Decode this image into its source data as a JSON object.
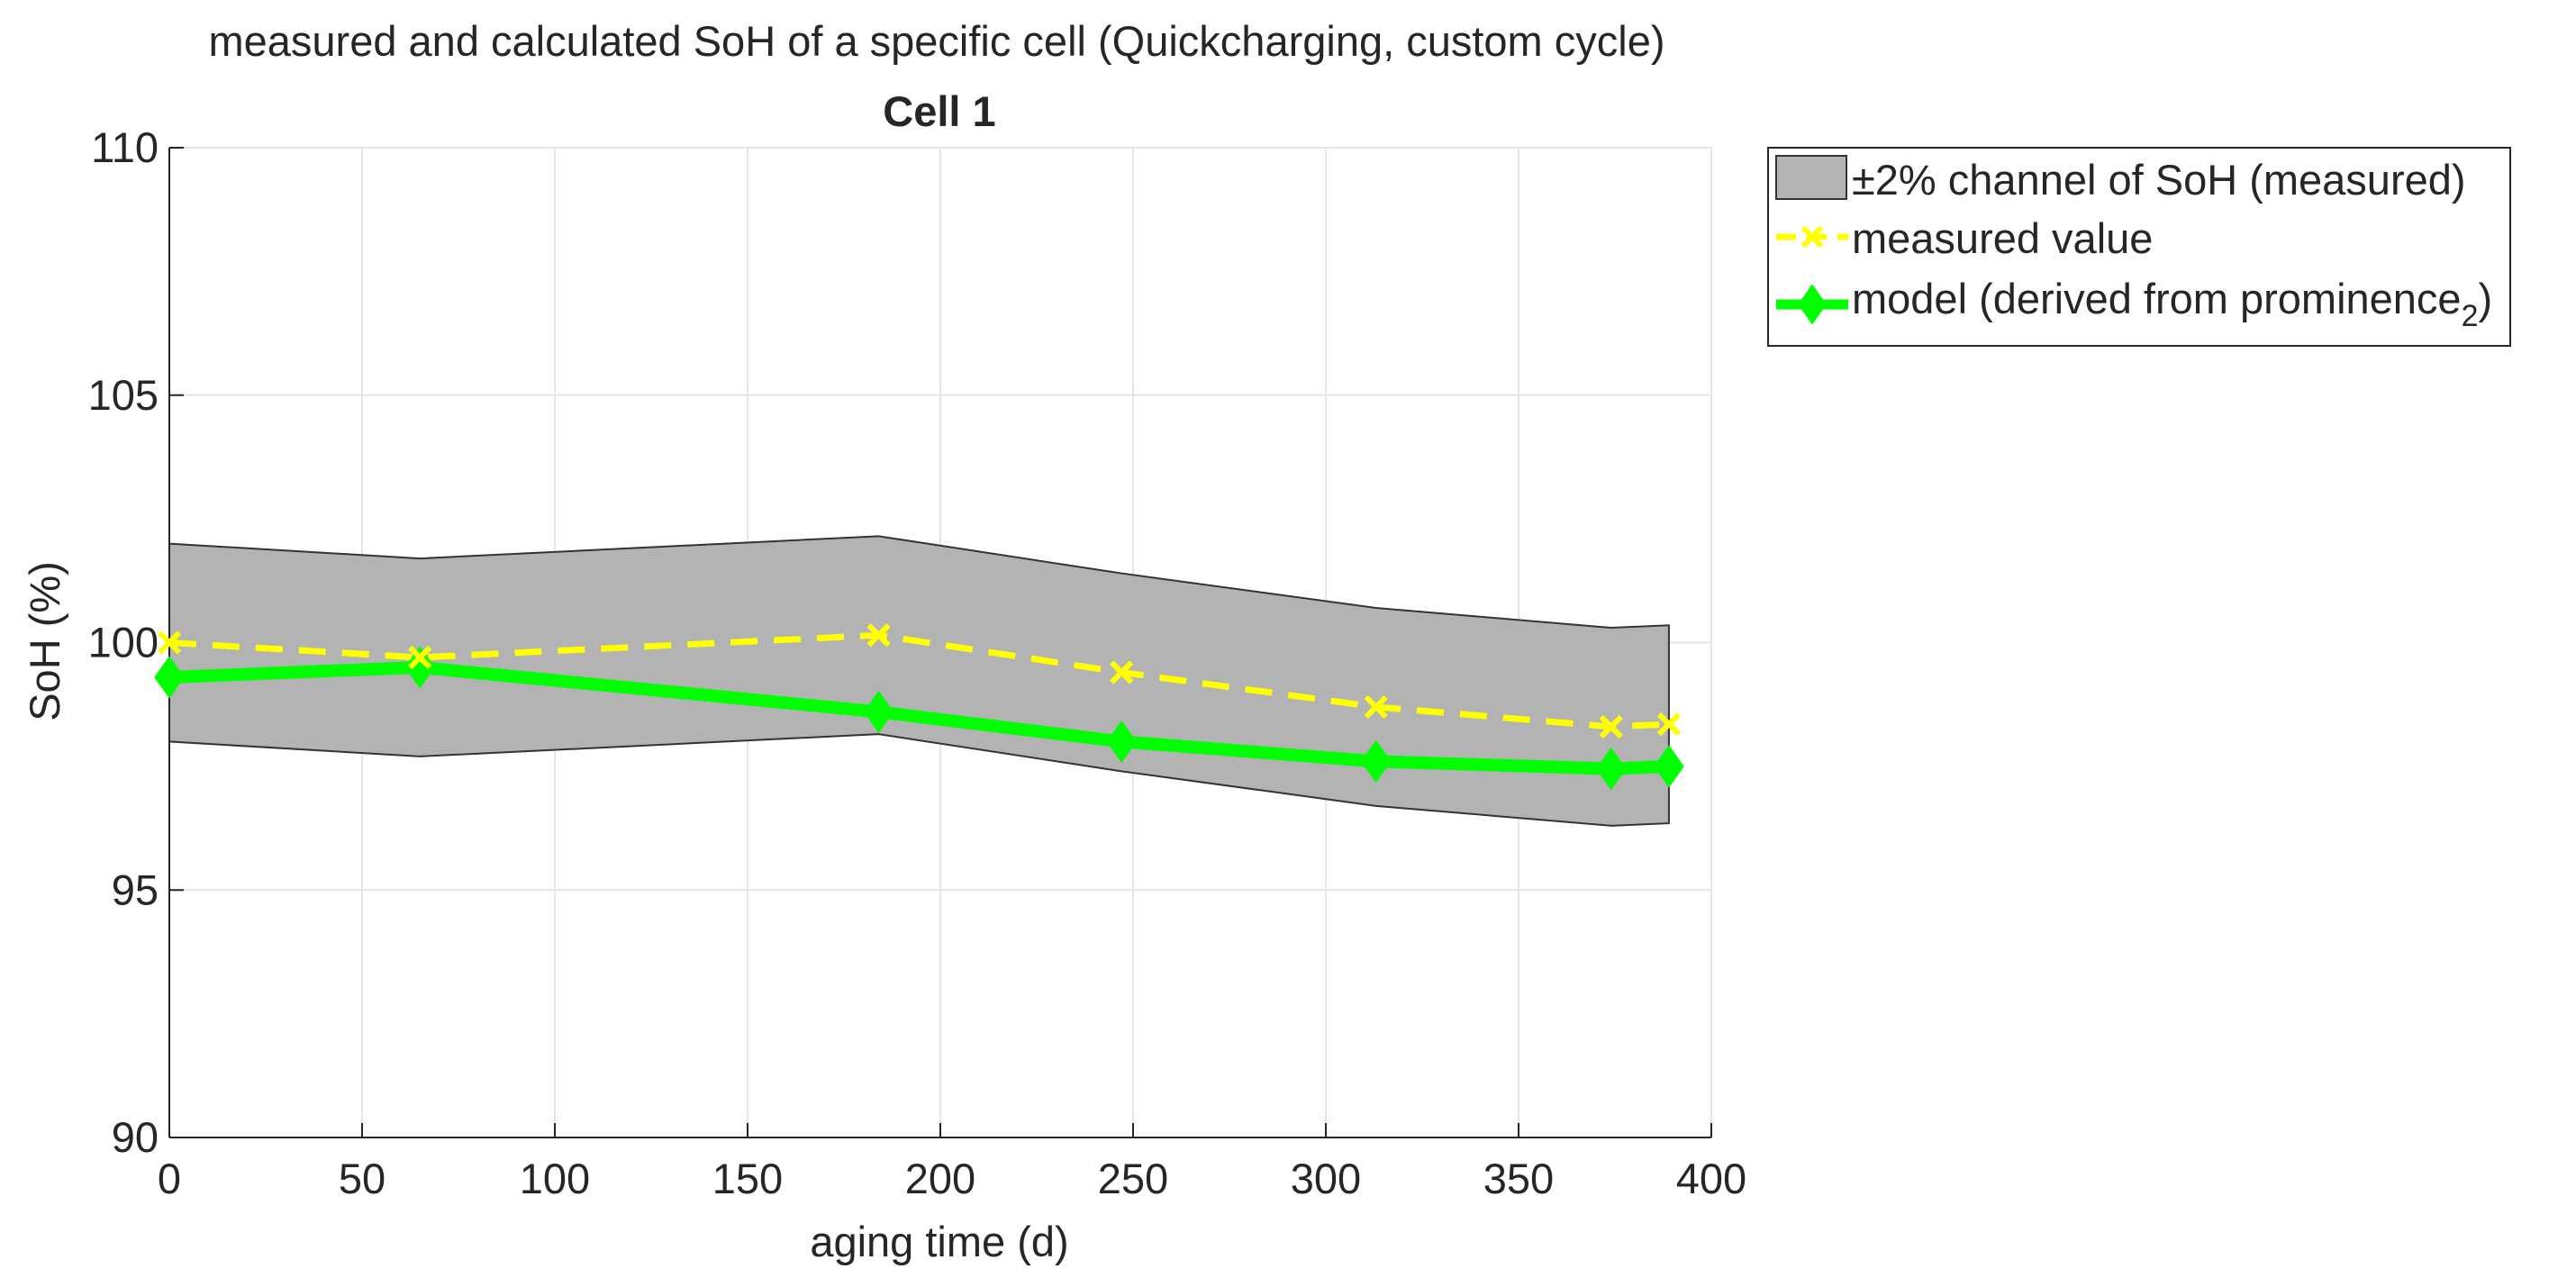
{
  "chart_data": {
    "type": "line",
    "suptitle": "measured and calculated SoH of a specific cell (Quickcharging, custom cycle)",
    "title": "Cell 1",
    "xlabel": "aging time (d)",
    "ylabel": "SoH (%)",
    "xlim": [
      0,
      400
    ],
    "ylim": [
      90,
      110
    ],
    "xticks": [
      0,
      50,
      100,
      150,
      200,
      250,
      300,
      350,
      400
    ],
    "yticks": [
      90,
      95,
      100,
      105,
      110
    ],
    "grid": true,
    "legend_position": "outside-top-right",
    "band": {
      "name": "±2% channel of SoH (measured)",
      "color": "#b3b3b3",
      "x": [
        0,
        65,
        184,
        247,
        313,
        374,
        389
      ],
      "upper": [
        102.0,
        101.7,
        102.15,
        101.4,
        100.7,
        100.3,
        100.35
      ],
      "lower": [
        98.0,
        97.7,
        98.15,
        97.4,
        96.7,
        96.3,
        96.35
      ]
    },
    "series": [
      {
        "name": "measured value",
        "color": "#ffff00",
        "style": "dashed",
        "marker": "x",
        "x": [
          0,
          65,
          184,
          247,
          313,
          374,
          389
        ],
        "values": [
          100.0,
          99.7,
          100.15,
          99.4,
          98.7,
          98.3,
          98.35
        ]
      },
      {
        "name": "model (derived from prominence",
        "name_subscript": "2",
        "name_suffix": ")",
        "color": "#00ff00",
        "style": "solid",
        "marker": "diamond",
        "x": [
          0,
          65,
          184,
          247,
          313,
          374,
          389
        ],
        "values": [
          99.3,
          99.5,
          98.6,
          98.0,
          97.6,
          97.45,
          97.5
        ]
      }
    ]
  }
}
